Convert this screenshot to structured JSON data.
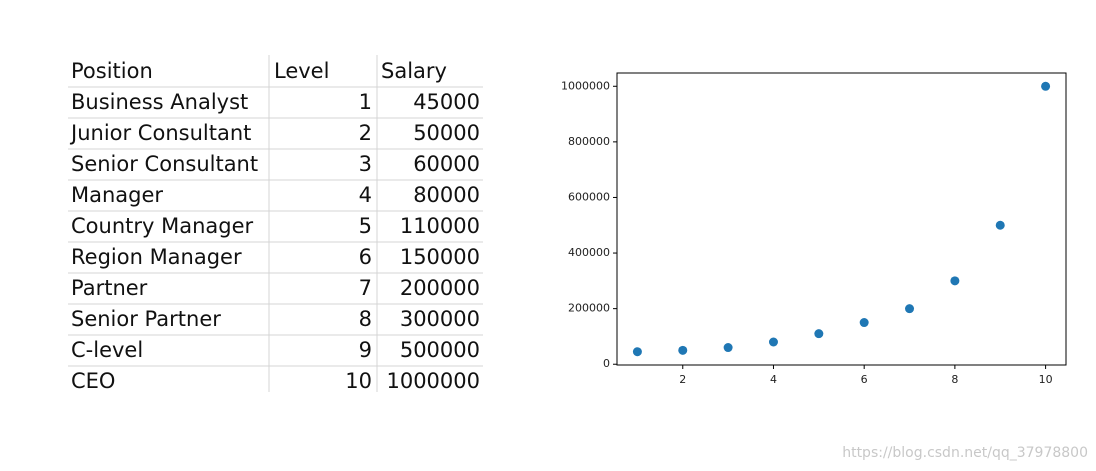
{
  "table": {
    "header": [
      "Position",
      "Level",
      "Salary"
    ],
    "rows": [
      [
        "Business Analyst",
        1,
        45000
      ],
      [
        "Junior Consultant",
        2,
        50000
      ],
      [
        "Senior Consultant",
        3,
        60000
      ],
      [
        "Manager",
        4,
        80000
      ],
      [
        "Country Manager",
        5,
        110000
      ],
      [
        "Region Manager",
        6,
        150000
      ],
      [
        "Partner",
        7,
        200000
      ],
      [
        "Senior Partner",
        8,
        300000
      ],
      [
        "C-level",
        9,
        500000
      ],
      [
        "CEO",
        10,
        1000000
      ]
    ]
  },
  "chart_data": {
    "type": "scatter",
    "color": "#1f77b4",
    "x": [
      1,
      2,
      3,
      4,
      5,
      6,
      7,
      8,
      9,
      10
    ],
    "values": [
      45000,
      50000,
      60000,
      80000,
      110000,
      150000,
      200000,
      300000,
      500000,
      1000000
    ],
    "xlim": [
      0.55,
      10.45
    ],
    "xticks": [
      2,
      4,
      6,
      8,
      10
    ],
    "ylim": [
      -2750,
      1047750
    ],
    "yticks": [
      0,
      200000,
      400000,
      600000,
      800000,
      1000000
    ]
  },
  "watermark": "https://blog.csdn.net/qq_37978800"
}
